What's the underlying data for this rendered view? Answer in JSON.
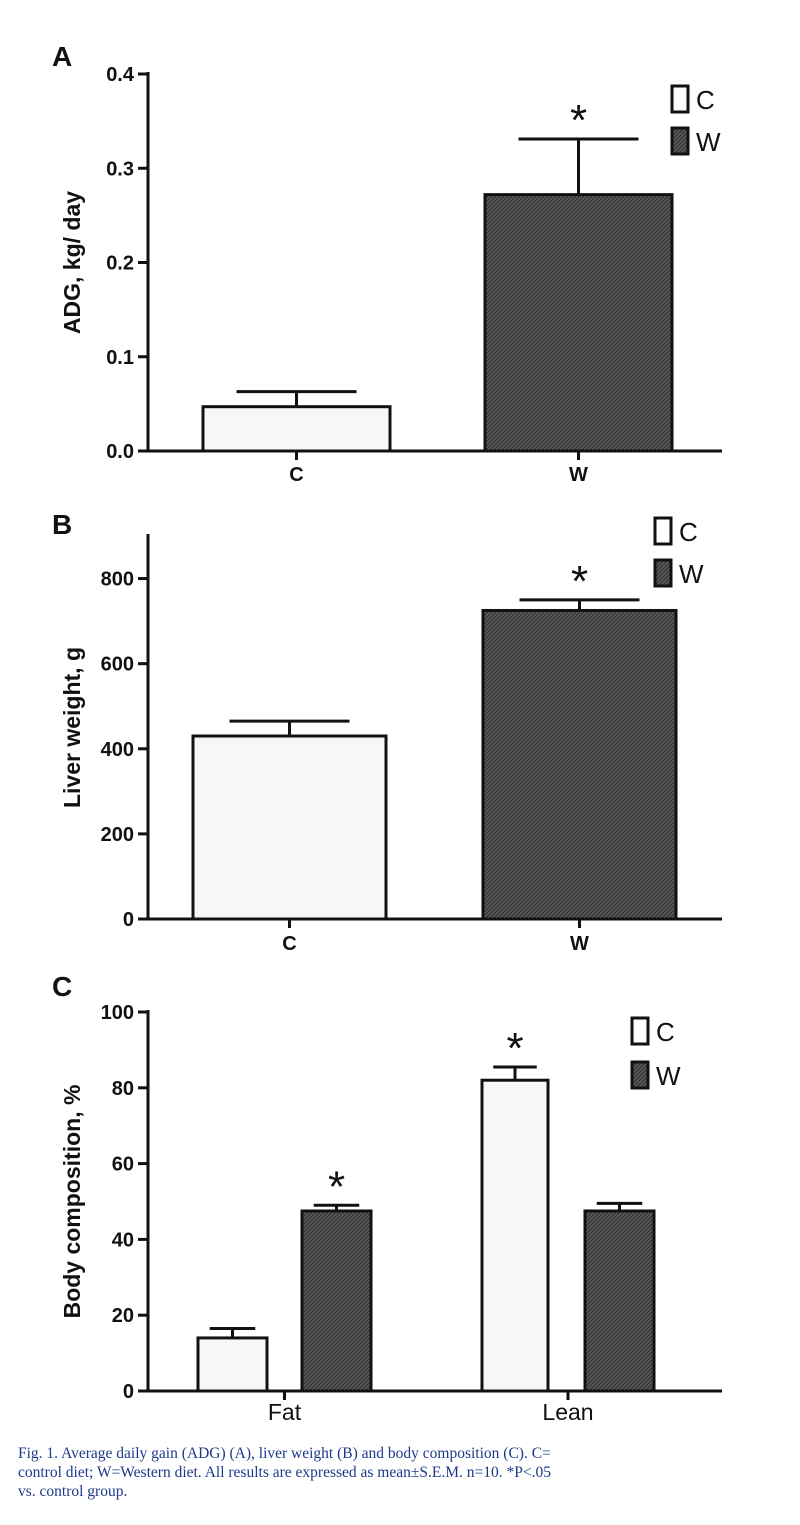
{
  "legend_labels": [
    "C",
    "W"
  ],
  "colors": {
    "control_fill": "#ffffff",
    "western_fill": "#555555",
    "axis": "#111111"
  },
  "chart_data": [
    {
      "type": "bar",
      "panel_label": "A",
      "categories": [
        "C",
        "W"
      ],
      "values": [
        0.047,
        0.272
      ],
      "errors": [
        0.016,
        0.059
      ],
      "significance": [
        "",
        "*"
      ],
      "ylabel": "ADG, kg/ day",
      "xlabel": "",
      "ylim": [
        0,
        0.4
      ],
      "yticks": [
        "0.0",
        "0.1",
        "0.2",
        "0.3",
        "0.4"
      ],
      "legend": [
        "C",
        "W"
      ],
      "legend_position": "top-right",
      "grid": false
    },
    {
      "type": "bar",
      "panel_label": "B",
      "categories": [
        "C",
        "W"
      ],
      "values": [
        430,
        725
      ],
      "errors": [
        35,
        25
      ],
      "significance": [
        "",
        "*"
      ],
      "ylabel": "Liver weight, g",
      "xlabel": "",
      "ylim": [
        0,
        900
      ],
      "yticks": [
        "0",
        "200",
        "400",
        "600",
        "800"
      ],
      "legend": [
        "C",
        "W"
      ],
      "legend_position": "top-right",
      "grid": false
    },
    {
      "type": "bar",
      "panel_label": "C",
      "categories": [
        "Fat",
        "Lean"
      ],
      "series": [
        {
          "name": "C",
          "values": [
            14,
            82
          ],
          "errors": [
            2.5,
            3.5
          ],
          "significance": [
            "",
            "*"
          ]
        },
        {
          "name": "W",
          "values": [
            47.5,
            47.5
          ],
          "errors": [
            1.5,
            2
          ],
          "significance": [
            "*",
            ""
          ]
        }
      ],
      "ylabel": "Body composition, %",
      "xlabel": "",
      "ylim": [
        0,
        100
      ],
      "yticks": [
        "0",
        "20",
        "40",
        "60",
        "80",
        "100"
      ],
      "legend": [
        "C",
        "W"
      ],
      "legend_position": "top-right",
      "grid": false
    }
  ],
  "caption": {
    "lines": [
      "Fig. 1. Average daily gain (ADG) (A), liver weight (B) and body composition (C). C=",
      "control diet; W=Western diet. All results are expressed as mean±S.E.M. n=10. *P<.05",
      "vs. control group."
    ]
  }
}
